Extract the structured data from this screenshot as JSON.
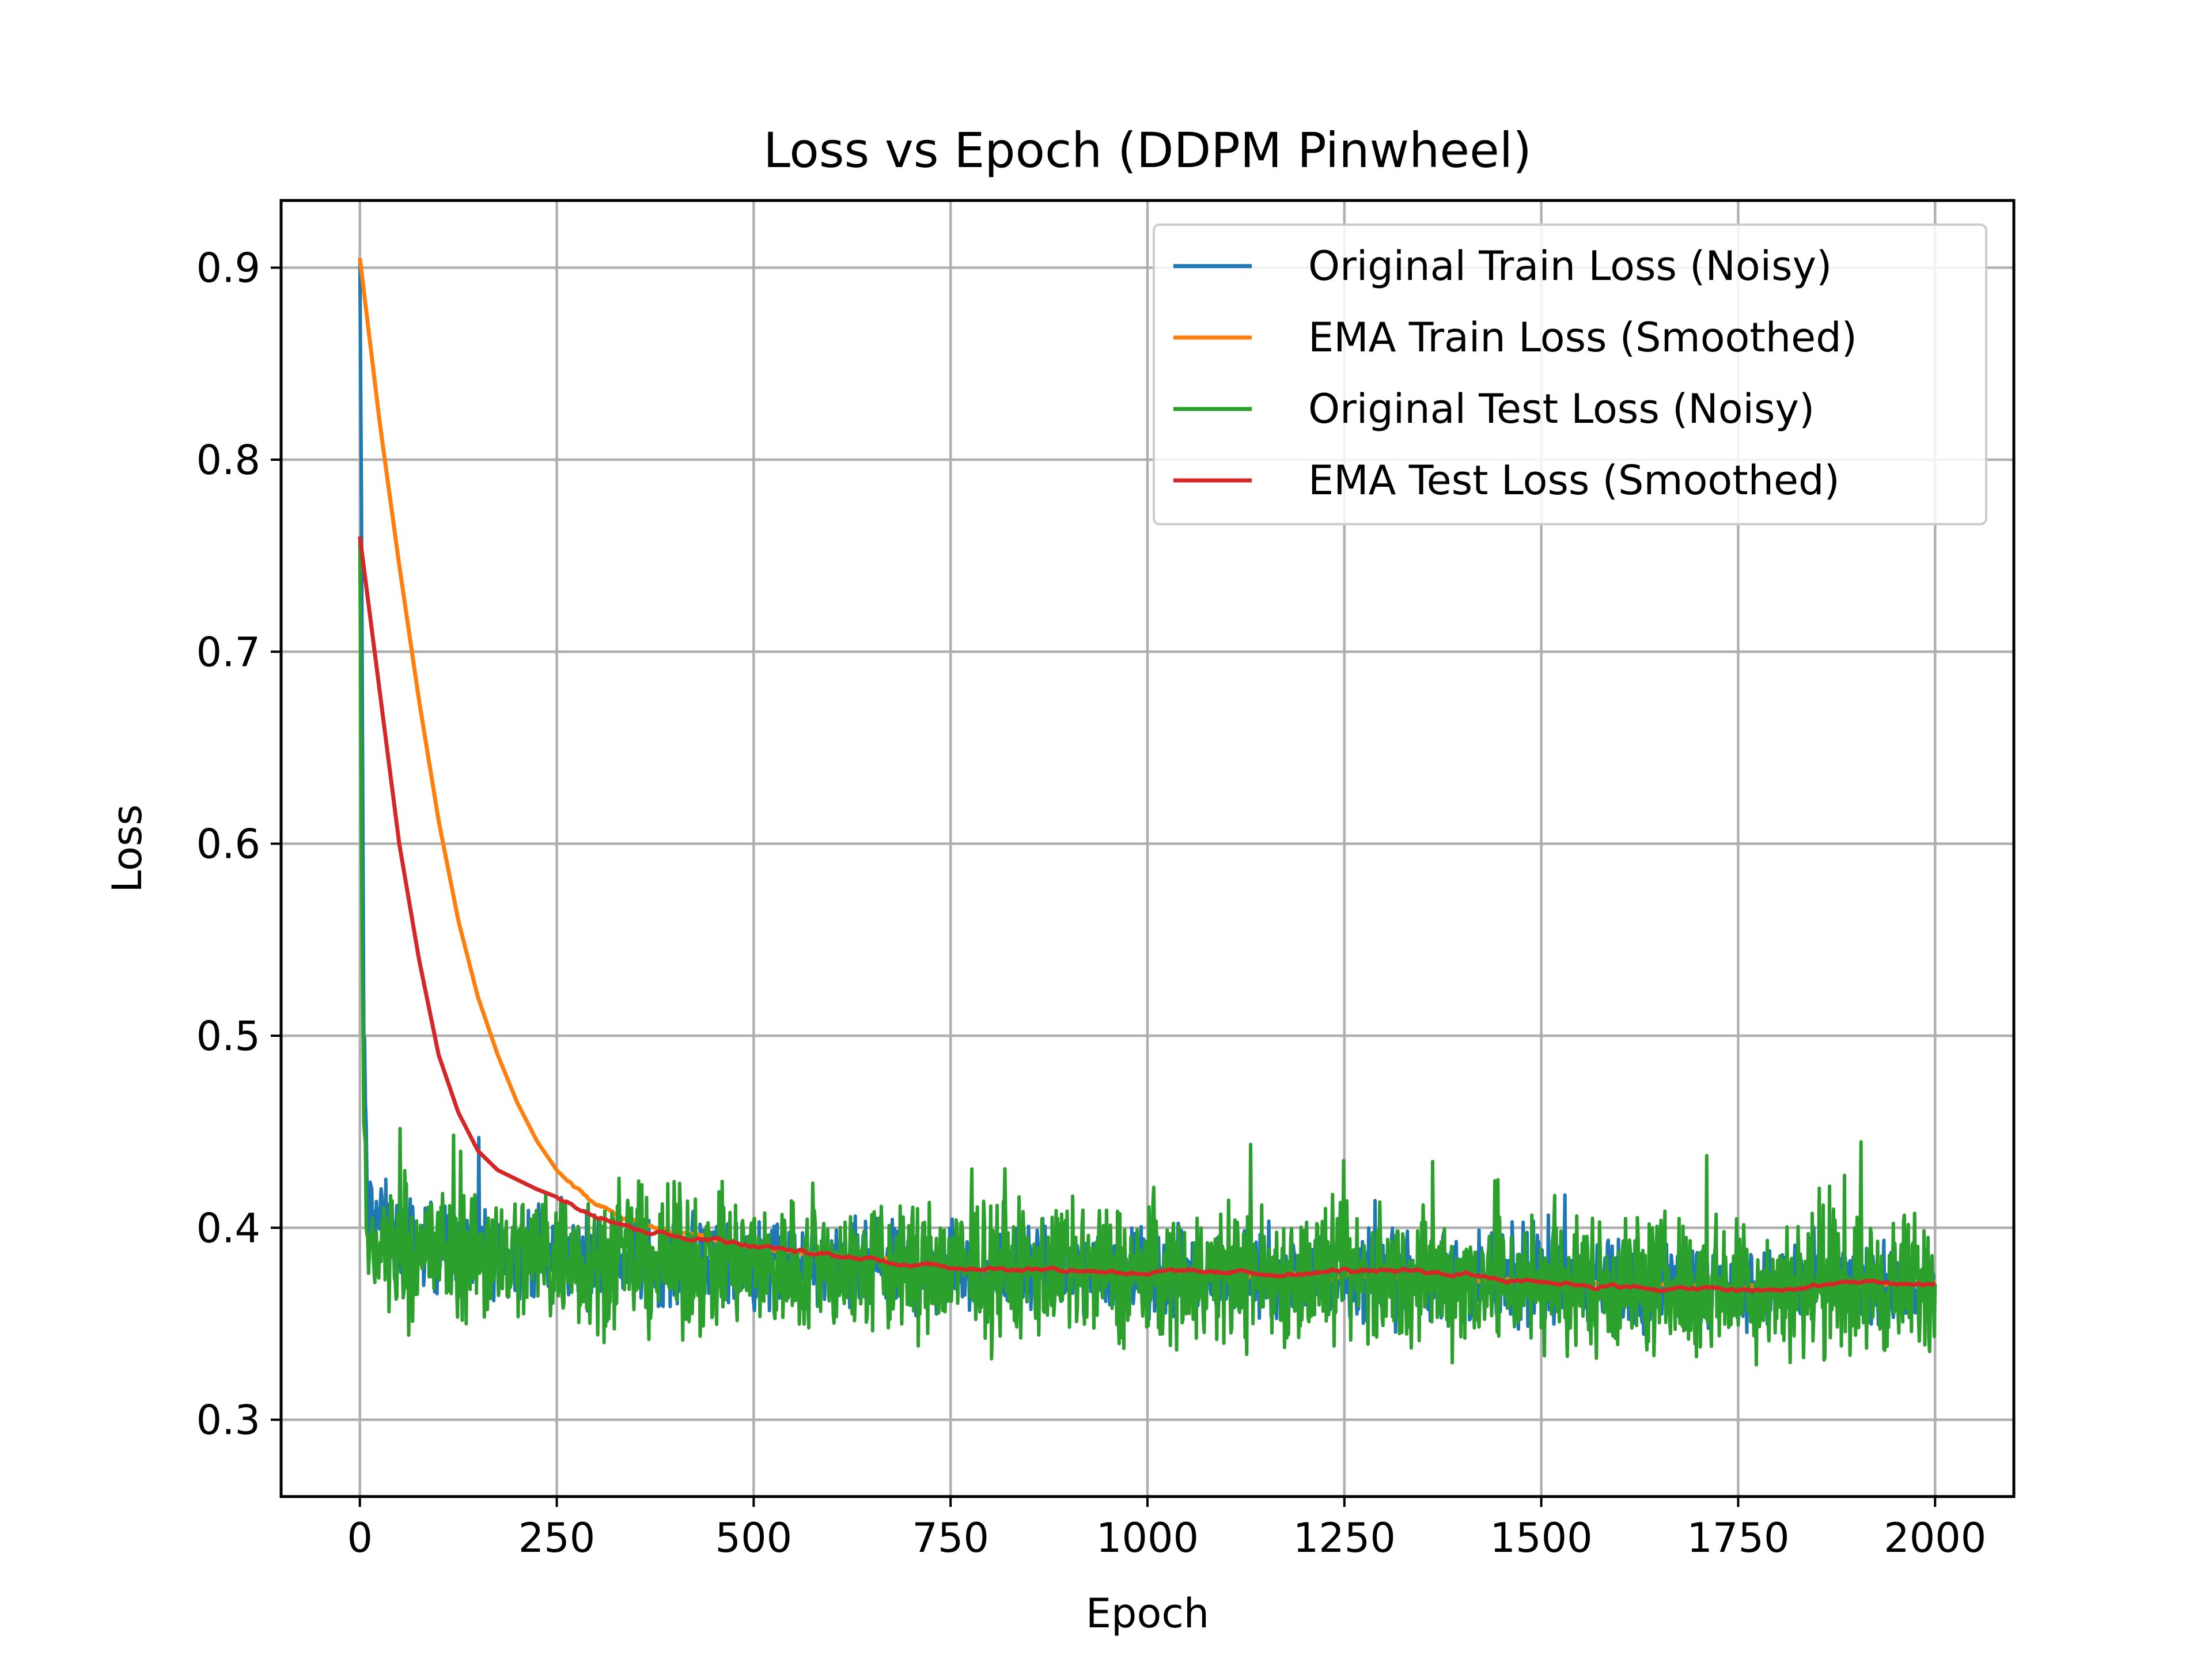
{
  "chart_data": {
    "type": "line",
    "title": "Loss vs Epoch (DDPM Pinwheel)",
    "xlabel": "Epoch",
    "ylabel": "Loss",
    "xlim": [
      -100,
      2100
    ],
    "ylim": [
      0.26,
      0.935
    ],
    "xticks": [
      0,
      250,
      500,
      750,
      1000,
      1250,
      1500,
      1750,
      2000
    ],
    "yticks": [
      0.3,
      0.4,
      0.5,
      0.6,
      0.7,
      0.8,
      0.9
    ],
    "xtick_labels": [
      "0",
      "250",
      "500",
      "750",
      "1000",
      "1250",
      "1500",
      "1750",
      "2000"
    ],
    "ytick_labels": [
      "0.3",
      "0.4",
      "0.5",
      "0.6",
      "0.7",
      "0.8",
      "0.9"
    ],
    "grid": true,
    "legend_position": "top-right",
    "series": [
      {
        "name": "Original Train Loss (Noisy)",
        "color": "#1f77b4",
        "style": "noisy",
        "x": [
          0,
          2,
          5,
          10,
          50,
          100,
          250,
          500,
          750,
          1000,
          1250,
          1500,
          1750,
          2000
        ],
        "y": [
          0.905,
          0.78,
          0.5,
          0.41,
          0.395,
          0.39,
          0.385,
          0.38,
          0.378,
          0.376,
          0.375,
          0.372,
          0.37,
          0.37
        ],
        "noise_amplitude": 0.02
      },
      {
        "name": "EMA Train Loss (Smoothed)",
        "color": "#ff7f0e",
        "style": "smooth",
        "x": [
          0,
          25,
          50,
          75,
          100,
          125,
          150,
          175,
          200,
          225,
          250,
          275,
          300,
          350,
          400,
          500,
          600,
          750,
          1000,
          1250,
          1500,
          1750,
          2000
        ],
        "y": [
          0.905,
          0.82,
          0.745,
          0.675,
          0.612,
          0.56,
          0.52,
          0.49,
          0.465,
          0.445,
          0.43,
          0.42,
          0.412,
          0.403,
          0.398,
          0.39,
          0.385,
          0.38,
          0.376,
          0.375,
          0.372,
          0.369,
          0.371
        ]
      },
      {
        "name": "Original Test Loss (Noisy)",
        "color": "#2ca02c",
        "style": "noisy",
        "x": [
          0,
          2,
          5,
          10,
          50,
          100,
          250,
          500,
          750,
          1000,
          1250,
          1500,
          1750,
          2000
        ],
        "y": [
          0.76,
          0.6,
          0.44,
          0.39,
          0.39,
          0.388,
          0.385,
          0.38,
          0.378,
          0.376,
          0.375,
          0.372,
          0.37,
          0.37
        ],
        "noise_amplitude": 0.033
      },
      {
        "name": "EMA Test Loss (Smoothed)",
        "color": "#d62728",
        "style": "smooth",
        "x": [
          0,
          25,
          50,
          75,
          100,
          125,
          150,
          175,
          200,
          225,
          250,
          300,
          350,
          400,
          450,
          500,
          600,
          750,
          1000,
          1200,
          1250,
          1400,
          1500,
          1650,
          1700,
          1800,
          1900,
          2000
        ],
        "y": [
          0.76,
          0.68,
          0.6,
          0.54,
          0.49,
          0.46,
          0.44,
          0.43,
          0.425,
          0.42,
          0.416,
          0.408,
          0.4,
          0.396,
          0.394,
          0.391,
          0.385,
          0.38,
          0.377,
          0.376,
          0.378,
          0.376,
          0.372,
          0.368,
          0.368,
          0.367,
          0.372,
          0.37
        ]
      }
    ]
  }
}
